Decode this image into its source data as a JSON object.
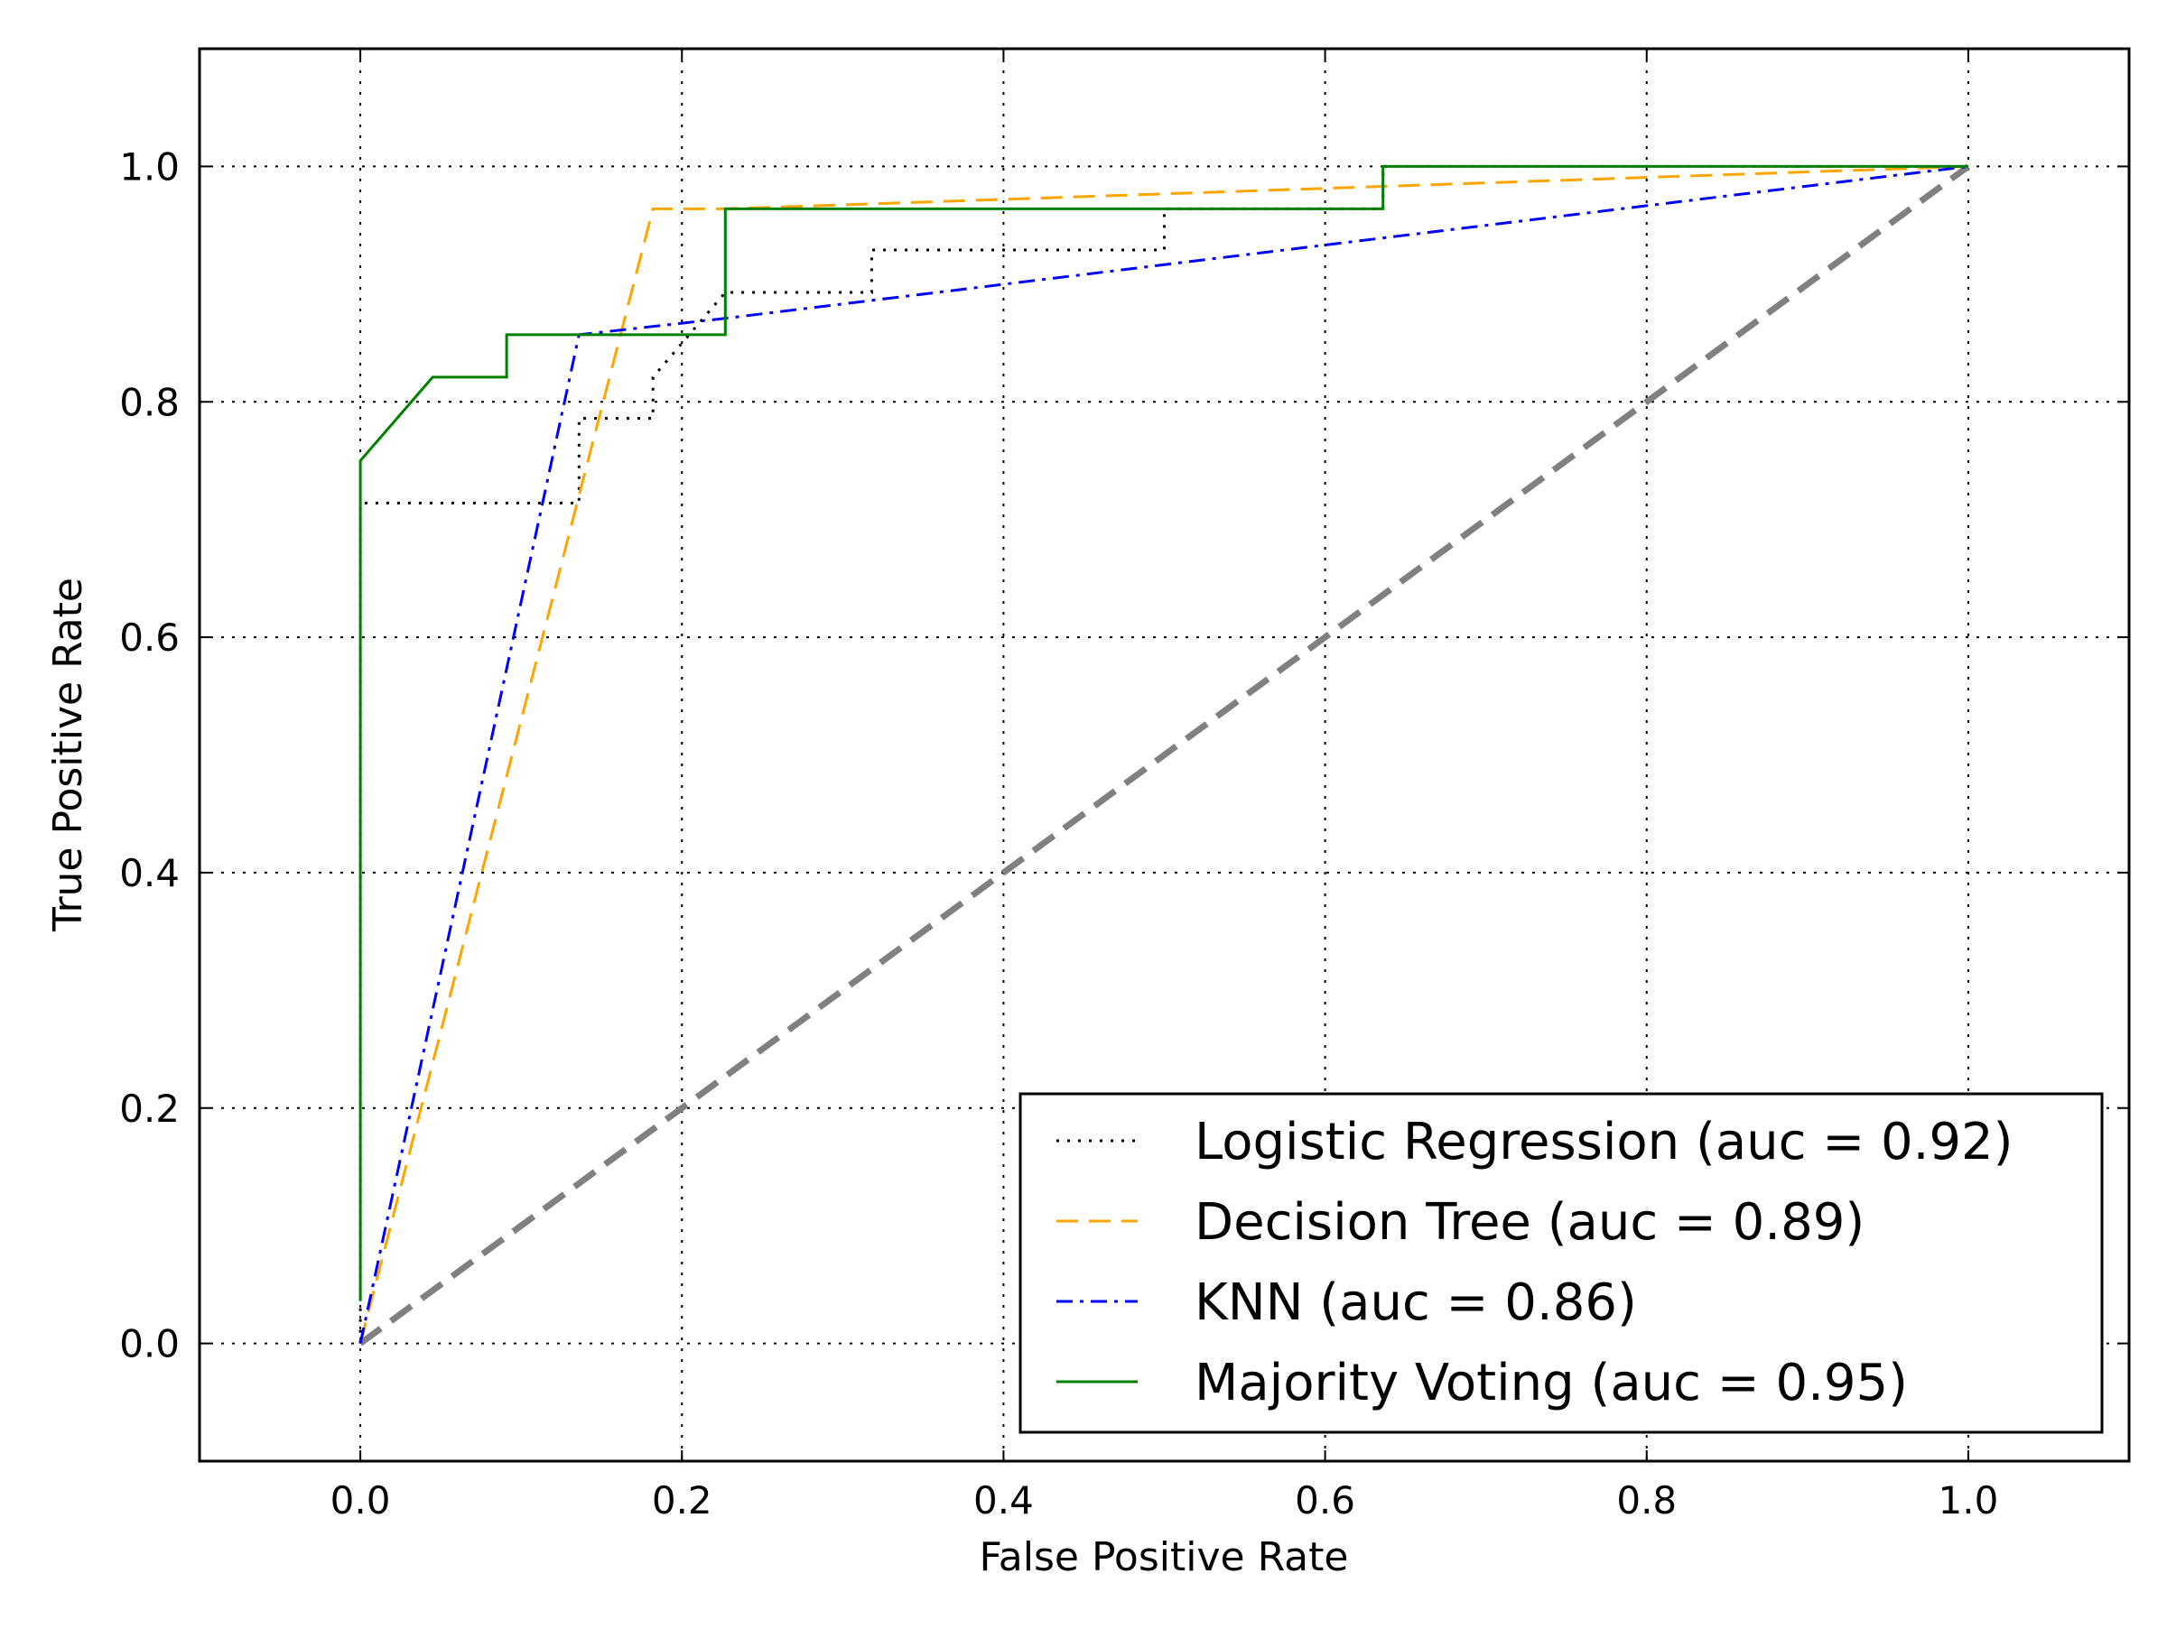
{
  "chart_data": {
    "type": "line",
    "title": "",
    "xlabel": "False Positive Rate",
    "ylabel": "True Positive Rate",
    "xlim": [
      -0.1,
      1.1
    ],
    "ylim": [
      -0.1,
      1.1
    ],
    "xticks": [
      0.0,
      0.2,
      0.4,
      0.6,
      0.8,
      1.0
    ],
    "yticks": [
      0.0,
      0.2,
      0.4,
      0.6,
      0.8,
      1.0
    ],
    "xtick_labels": [
      "0.0",
      "0.2",
      "0.4",
      "0.6",
      "0.8",
      "1.0"
    ],
    "ytick_labels": [
      "0.0",
      "0.2",
      "0.4",
      "0.6",
      "0.8",
      "1.0"
    ],
    "grid": true,
    "legend_position": "lower-right",
    "series": [
      {
        "name": "Logistic Regression (auc = 0.92)",
        "color": "#000000",
        "style": "dotted",
        "x": [
          0.0,
          0.0,
          0.0,
          0.136,
          0.136,
          0.182,
          0.182,
          0.227,
          0.227,
          0.318,
          0.318,
          0.5,
          0.5,
          0.636,
          0.636,
          1.0
        ],
        "y": [
          0.0,
          0.036,
          0.714,
          0.714,
          0.786,
          0.786,
          0.821,
          0.893,
          0.893,
          0.893,
          0.929,
          0.929,
          0.964,
          0.964,
          1.0,
          1.0
        ]
      },
      {
        "name": "Decision Tree (auc = 0.89)",
        "color": "#ffa500",
        "style": "dashed",
        "x": [
          0.0,
          0.182,
          0.227,
          1.0
        ],
        "y": [
          0.0,
          0.964,
          0.964,
          1.0
        ]
      },
      {
        "name": "KNN (auc = 0.86)",
        "color": "#0000ff",
        "style": "dashdot",
        "x": [
          0.0,
          0.136,
          0.227,
          1.0
        ],
        "y": [
          0.0,
          0.857,
          0.871,
          1.0
        ]
      },
      {
        "name": "Majority Voting (auc = 0.95)",
        "color": "#008000",
        "style": "solid",
        "x": [
          0.0,
          0.0,
          0.045,
          0.091,
          0.091,
          0.227,
          0.227,
          0.636,
          0.636,
          1.0
        ],
        "y": [
          0.036,
          0.75,
          0.821,
          0.821,
          0.857,
          0.857,
          0.964,
          0.964,
          1.0,
          1.0
        ]
      }
    ],
    "reference_line": {
      "color": "#808080",
      "style": "dashed",
      "x": [
        0,
        1
      ],
      "y": [
        0,
        1
      ]
    }
  }
}
